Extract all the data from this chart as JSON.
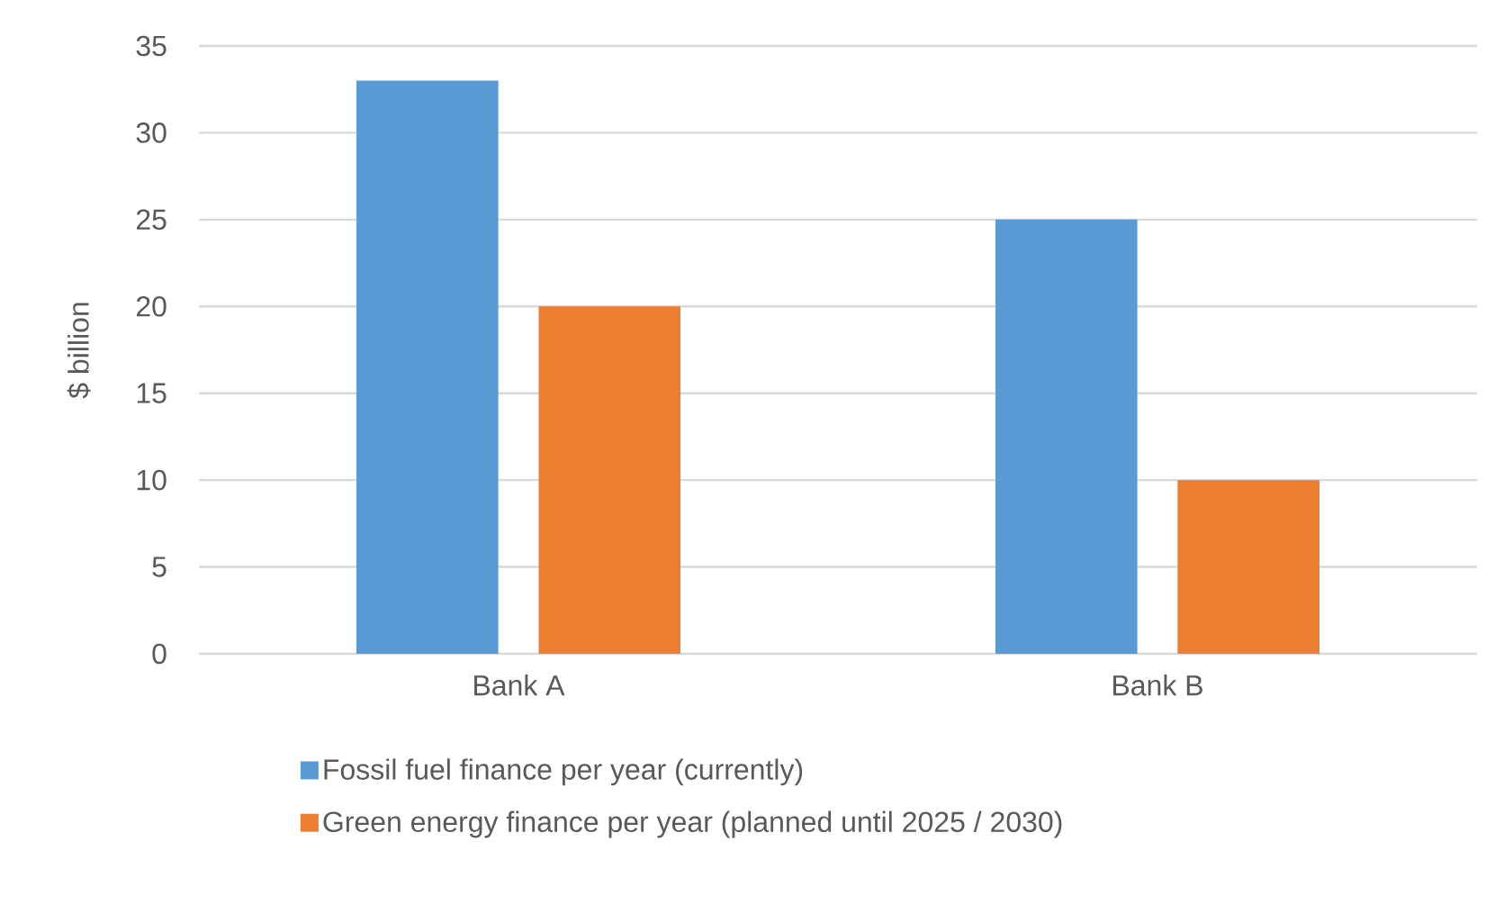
{
  "chart_data": {
    "type": "bar",
    "ylabel": "$ billion",
    "categories": [
      "Bank A",
      "Bank B"
    ],
    "series": [
      {
        "name": "Fossil fuel finance per year (currently)",
        "color": "#5b9bd5",
        "values": [
          33,
          25
        ]
      },
      {
        "name": "Green energy finance per year (planned until 2025 / 2030)",
        "color": "#ed7d31",
        "values": [
          20,
          10
        ]
      }
    ],
    "ylim": [
      0,
      35
    ],
    "yticks": [
      0,
      5,
      10,
      15,
      20,
      25,
      30,
      35
    ],
    "grid": "y",
    "legend": "bottom"
  }
}
